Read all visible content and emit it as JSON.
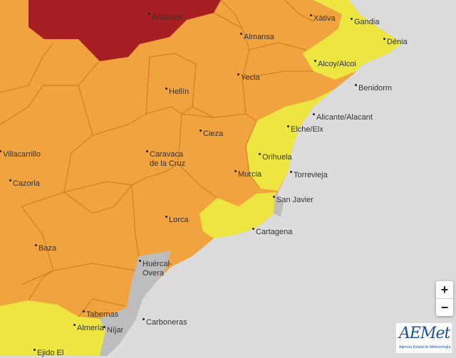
{
  "map": {
    "colors": {
      "sea": "#dcdcdc",
      "orange": "#f0a33e",
      "red": "#a61e22",
      "yellow": "#ede640",
      "gray": "#bdbdbd",
      "border": "#d0761f"
    },
    "warning_levels": [
      "red",
      "orange",
      "yellow",
      "none"
    ],
    "places": [
      "Albacete",
      "Xàtiva",
      "Gandia",
      "Almansa",
      "Dénia",
      "Alcoy/Alcoi",
      "Yecla",
      "Benidorm",
      "Hellín",
      "Alicante/Alacant",
      "Elche/Elx",
      "Cieza",
      "Villacarrillo",
      "Caravaca de la Cruz",
      "Orihuela",
      "Torrevieja",
      "Murcia",
      "Cazorla",
      "San Javier",
      "Lorca",
      "Cartagena",
      "Baza",
      "Huércal-Overa",
      "Tabernas",
      "Carboneras",
      "Níjar",
      "Almería",
      "Ejido El"
    ]
  },
  "controls": {
    "zoom_in": "+",
    "zoom_out": "−"
  },
  "logo": {
    "name": "AEMet",
    "subtitle": "Agencia Estatal de Meteorología"
  }
}
